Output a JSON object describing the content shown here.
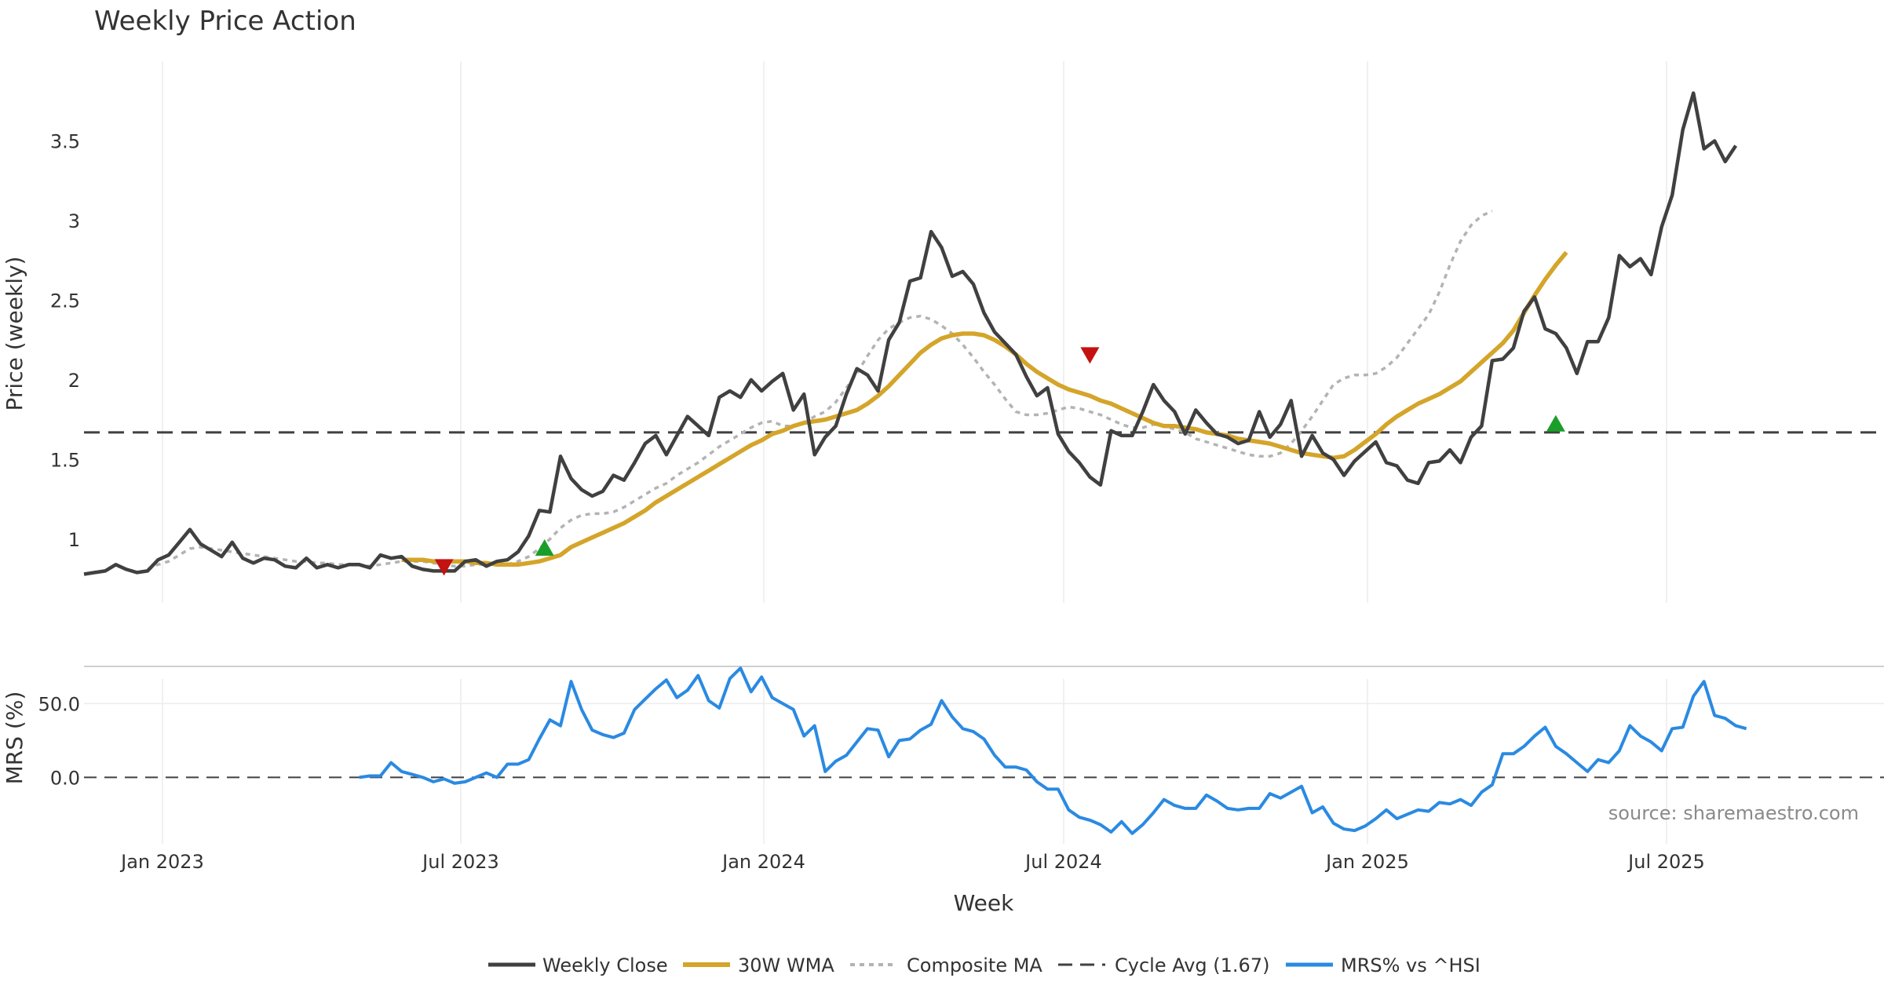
{
  "chart_data": {
    "type": "line",
    "title": "Weekly Price Action",
    "x_axis": {
      "label": "Week",
      "ticks": [
        "Jan 2023",
        "Jul 2023",
        "Jan 2024",
        "Jul 2024",
        "Jan 2025",
        "Jul 2025"
      ],
      "range_weeks": [
        0,
        170
      ]
    },
    "price_panel": {
      "ylabel": "Price (weekly)",
      "ylim": [
        0.6,
        4.0
      ],
      "yticks": [
        "1",
        "1.5",
        "2",
        "2.5",
        "3",
        "3.5"
      ],
      "series": {
        "weekly_close": {
          "name": "Weekly Close",
          "color": "#404040",
          "start_week": 0,
          "values": [
            0.78,
            0.79,
            0.8,
            0.84,
            0.81,
            0.79,
            0.8,
            0.87,
            0.9,
            0.98,
            1.06,
            0.97,
            0.93,
            0.89,
            0.98,
            0.88,
            0.85,
            0.88,
            0.87,
            0.83,
            0.82,
            0.88,
            0.82,
            0.84,
            0.82,
            0.84,
            0.84,
            0.82,
            0.9,
            0.88,
            0.89,
            0.83,
            0.81,
            0.8,
            0.8,
            0.8,
            0.86,
            0.87,
            0.83,
            0.86,
            0.87,
            0.92,
            1.02,
            1.18,
            1.17,
            1.52,
            1.38,
            1.31,
            1.27,
            1.3,
            1.4,
            1.37,
            1.48,
            1.6,
            1.65,
            1.53,
            1.65,
            1.77,
            1.71,
            1.65,
            1.89,
            1.93,
            1.89,
            2.0,
            1.93,
            1.99,
            2.04,
            1.81,
            1.91,
            1.53,
            1.64,
            1.71,
            1.91,
            2.07,
            2.03,
            1.93,
            2.25,
            2.36,
            2.62,
            2.64,
            2.93,
            2.83,
            2.65,
            2.68,
            2.6,
            2.42,
            2.3,
            2.23,
            2.16,
            2.02,
            1.9,
            1.95,
            1.66,
            1.55,
            1.48,
            1.39,
            1.34,
            1.68,
            1.65,
            1.65,
            1.8,
            1.97,
            1.87,
            1.8,
            1.66,
            1.81,
            1.73,
            1.66,
            1.64,
            1.6,
            1.62,
            1.8,
            1.64,
            1.72,
            1.87,
            1.52,
            1.65,
            1.54,
            1.5,
            1.4,
            1.49,
            1.55,
            1.61,
            1.48,
            1.46,
            1.37,
            1.35,
            1.48,
            1.49,
            1.56,
            1.48,
            1.64,
            1.71,
            2.12,
            2.13,
            2.2,
            2.43,
            2.52,
            2.32,
            2.29,
            2.2,
            2.04,
            2.24,
            2.24,
            2.39,
            2.78,
            2.71,
            2.76,
            2.66,
            2.96,
            3.16,
            3.57,
            3.8,
            3.45,
            3.5,
            3.37,
            3.47
          ]
        },
        "wma30": {
          "name": "30W WMA",
          "color": "#D4A52A",
          "start_week": 30,
          "values": [
            0.87,
            0.87,
            0.87,
            0.86,
            0.86,
            0.86,
            0.86,
            0.85,
            0.85,
            0.84,
            0.84,
            0.84,
            0.85,
            0.86,
            0.88,
            0.9,
            0.95,
            0.98,
            1.01,
            1.04,
            1.07,
            1.1,
            1.14,
            1.18,
            1.23,
            1.27,
            1.31,
            1.35,
            1.39,
            1.43,
            1.47,
            1.51,
            1.55,
            1.59,
            1.62,
            1.66,
            1.68,
            1.71,
            1.73,
            1.74,
            1.75,
            1.77,
            1.79,
            1.81,
            1.85,
            1.9,
            1.96,
            2.03,
            2.1,
            2.17,
            2.22,
            2.26,
            2.28,
            2.29,
            2.29,
            2.28,
            2.25,
            2.21,
            2.16,
            2.1,
            2.05,
            2.01,
            1.97,
            1.94,
            1.92,
            1.9,
            1.87,
            1.85,
            1.82,
            1.79,
            1.76,
            1.73,
            1.71,
            1.71,
            1.7,
            1.69,
            1.67,
            1.66,
            1.65,
            1.63,
            1.62,
            1.61,
            1.6,
            1.58,
            1.56,
            1.54,
            1.53,
            1.52,
            1.51,
            1.52,
            1.56,
            1.61,
            1.66,
            1.72,
            1.77,
            1.81,
            1.85,
            1.88,
            1.91,
            1.95,
            1.99,
            2.05,
            2.11,
            2.17,
            2.23,
            2.31,
            2.42,
            2.53,
            2.63,
            2.72,
            2.8
          ]
        },
        "composite_ma": {
          "name": "Composite MA",
          "color": "#b3b3b3",
          "start_week": 6,
          "values": [
            0.81,
            0.84,
            0.86,
            0.9,
            0.94,
            0.95,
            0.94,
            0.93,
            0.92,
            0.91,
            0.9,
            0.89,
            0.88,
            0.87,
            0.86,
            0.86,
            0.85,
            0.85,
            0.84,
            0.84,
            0.84,
            0.83,
            0.84,
            0.85,
            0.86,
            0.86,
            0.86,
            0.85,
            0.84,
            0.83,
            0.83,
            0.84,
            0.84,
            0.84,
            0.84,
            0.86,
            0.89,
            0.94,
            1.0,
            1.07,
            1.12,
            1.15,
            1.16,
            1.16,
            1.17,
            1.2,
            1.24,
            1.28,
            1.32,
            1.35,
            1.4,
            1.44,
            1.48,
            1.53,
            1.58,
            1.62,
            1.66,
            1.7,
            1.73,
            1.74,
            1.71,
            1.71,
            1.73,
            1.77,
            1.8,
            1.86,
            1.95,
            2.04,
            2.15,
            2.25,
            2.32,
            2.36,
            2.39,
            2.4,
            2.38,
            2.34,
            2.29,
            2.22,
            2.14,
            2.05,
            1.97,
            1.88,
            1.8,
            1.78,
            1.78,
            1.79,
            1.81,
            1.83,
            1.82,
            1.8,
            1.78,
            1.75,
            1.72,
            1.7,
            1.7,
            1.72,
            1.71,
            1.69,
            1.67,
            1.63,
            1.61,
            1.59,
            1.57,
            1.55,
            1.53,
            1.52,
            1.52,
            1.54,
            1.6,
            1.68,
            1.77,
            1.87,
            1.97,
            2.01,
            2.03,
            2.03,
            2.04,
            2.08,
            2.14,
            2.23,
            2.32,
            2.41,
            2.55,
            2.72,
            2.87,
            2.97,
            3.03,
            3.06
          ]
        },
        "cycle_avg": {
          "name": "Cycle Avg (1.67)",
          "value": 1.67,
          "color": "#404040"
        }
      },
      "signals": [
        {
          "type": "sell",
          "week": 34,
          "price": 0.83,
          "color": "#c41111"
        },
        {
          "type": "buy",
          "week": 43.5,
          "price": 0.94,
          "color": "#1a9e2a"
        },
        {
          "type": "sell",
          "week": 95,
          "price": 2.16,
          "color": "#c41111"
        },
        {
          "type": "buy",
          "week": 139,
          "price": 1.72,
          "color": "#1a9e2a"
        }
      ]
    },
    "mrs_panel": {
      "ylabel": "MRS (%)",
      "ylim": [
        -45,
        72
      ],
      "yticks": [
        "50.0",
        "0.0"
      ],
      "zero_line": 0,
      "series": {
        "mrs": {
          "name": "MRS% vs ^HSI",
          "color": "#2a8ae2",
          "start_week": 26,
          "values": [
            0,
            1,
            1,
            10,
            4,
            2,
            0,
            -3,
            -1,
            -4,
            -3,
            0,
            3,
            0,
            9,
            9,
            12,
            26,
            39,
            35,
            65,
            46,
            32,
            29,
            27,
            30,
            46,
            53,
            60,
            66,
            54,
            59,
            69,
            52,
            47,
            67,
            74,
            58,
            68,
            54,
            50,
            46,
            28,
            35,
            4,
            11,
            15,
            24,
            33,
            32,
            14,
            25,
            26,
            32,
            36,
            52,
            41,
            33,
            31,
            26,
            15,
            7,
            7,
            5,
            -3,
            -8,
            -8,
            -22,
            -27,
            -29,
            -32,
            -37,
            -30,
            -38,
            -32,
            -24,
            -15,
            -19,
            -21,
            -21,
            -12,
            -16,
            -21,
            -22,
            -21,
            -21,
            -11,
            -14,
            -10,
            -6,
            -24,
            -20,
            -31,
            -35,
            -36,
            -33,
            -28,
            -22,
            -28,
            -25,
            -22,
            -23,
            -17,
            -18,
            -15,
            -19,
            -10,
            -5,
            16,
            16,
            21,
            28,
            34,
            21,
            16,
            10,
            4,
            12,
            10,
            18,
            35,
            28,
            24,
            18,
            33,
            34,
            55,
            65,
            42,
            40,
            35,
            33
          ]
        }
      }
    },
    "legend": [
      "Weekly Close",
      "30W WMA",
      "Composite MA",
      "Cycle Avg (1.67)",
      "MRS% vs ^HSI"
    ],
    "legend_position": "bottom-center",
    "source": "source: sharemaestro.com"
  }
}
